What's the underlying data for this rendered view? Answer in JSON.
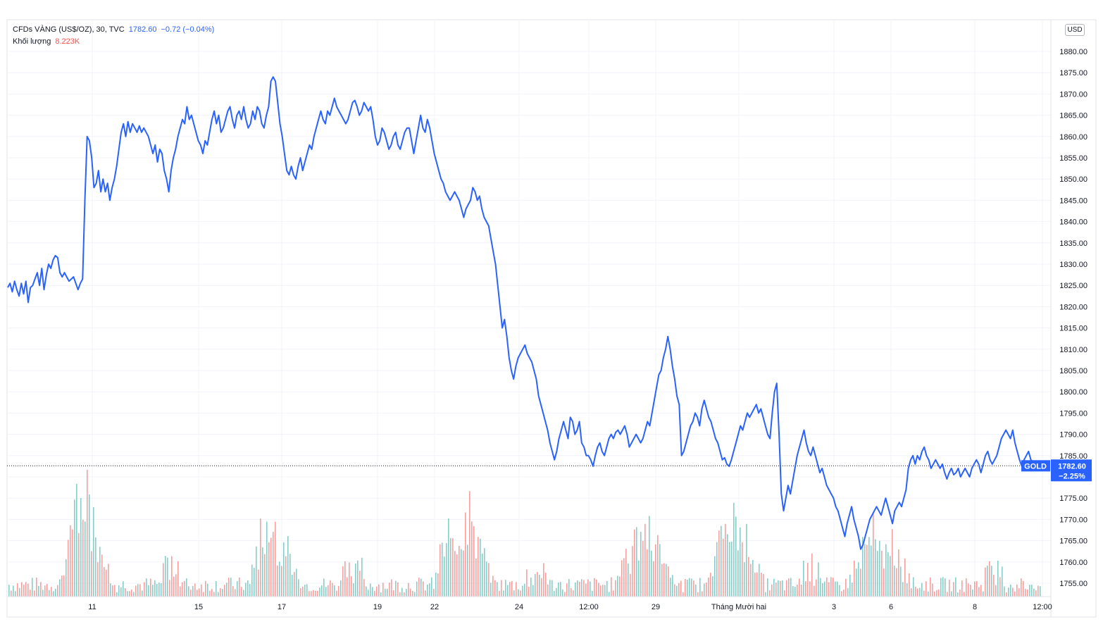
{
  "legend": {
    "symbol": "CFDs VÀNG (US$/OZ), 30, TVC",
    "last_price": "1782.60",
    "change": "−0.72 (−0.04%)",
    "volume_label": "Khối lượng",
    "volume_value": "8.223K"
  },
  "currency_button": "USD",
  "price_tag": {
    "symbol_label": "GOLD",
    "price": "1782.60",
    "change_pct": "−2.25%"
  },
  "colors": {
    "line": "#2962ff",
    "volume_up": "#26a69a",
    "volume_down": "#ef5350",
    "grid": "#f0f3fa",
    "tag_bg": "#2962ff"
  },
  "chart_data": {
    "type": "line",
    "title": "CFDs VÀNG (US$/OZ), 30, TVC",
    "xlabel": "",
    "ylabel": "",
    "ylim": [
      1750,
      1885
    ],
    "y_ticks": [
      1755,
      1760,
      1765,
      1770,
      1775,
      1780,
      1785,
      1790,
      1795,
      1800,
      1805,
      1810,
      1815,
      1820,
      1825,
      1830,
      1835,
      1840,
      1845,
      1850,
      1855,
      1860,
      1865,
      1870,
      1875,
      1880
    ],
    "x_tick_labels": [
      "11",
      "15",
      "17",
      "19",
      "22",
      "24",
      "12:00",
      "29",
      "Tháng Mười hai",
      "3",
      "6",
      "8",
      "12:00"
    ],
    "grid": true,
    "last_value": 1782.6,
    "series": [
      {
        "values": [
          1824.5,
          1825.5,
          1823.5,
          1826,
          1824,
          1822.5,
          1825.5,
          1823,
          1826,
          1821,
          1824.5,
          1825,
          1826.5,
          1828,
          1825,
          1829,
          1824,
          1827.5,
          1830,
          1829,
          1831,
          1832,
          1831.5,
          1828,
          1827,
          1828,
          1827,
          1826,
          1826.5,
          1827,
          1825.5,
          1824,
          1825.5,
          1826.5,
          1845,
          1860,
          1859,
          1855,
          1848,
          1849,
          1852,
          1847,
          1850,
          1847,
          1849,
          1845,
          1848,
          1850,
          1853,
          1857,
          1861,
          1863,
          1860,
          1863.5,
          1861,
          1863,
          1862,
          1861,
          1862.5,
          1861,
          1862,
          1861,
          1860,
          1858,
          1856,
          1858,
          1854,
          1857,
          1856,
          1852,
          1850,
          1847,
          1852,
          1855,
          1857,
          1860,
          1862,
          1864,
          1863,
          1867,
          1864,
          1865,
          1863,
          1861,
          1859,
          1858,
          1856,
          1859,
          1858,
          1861,
          1864,
          1866,
          1863,
          1865,
          1861,
          1862,
          1864,
          1866,
          1867,
          1864,
          1862,
          1865,
          1866,
          1864,
          1867,
          1864,
          1862,
          1863,
          1866,
          1864,
          1867,
          1866,
          1863,
          1862,
          1865,
          1867,
          1873,
          1874,
          1873,
          1868,
          1863,
          1860,
          1856,
          1852,
          1851,
          1853,
          1851,
          1850,
          1853,
          1855,
          1852,
          1854,
          1856,
          1858,
          1857,
          1860,
          1862,
          1864,
          1866,
          1864,
          1863,
          1866,
          1865,
          1867,
          1869,
          1867,
          1866,
          1865,
          1864,
          1863,
          1864,
          1866,
          1868,
          1868.5,
          1867,
          1865,
          1866,
          1868,
          1867,
          1866,
          1867,
          1864,
          1860,
          1858,
          1859,
          1862,
          1861,
          1859,
          1857,
          1858,
          1860,
          1861,
          1858,
          1857,
          1859,
          1861,
          1862,
          1862,
          1859,
          1856,
          1859,
          1862,
          1865,
          1862,
          1861,
          1864,
          1862,
          1859,
          1856,
          1854,
          1852,
          1850,
          1849,
          1847,
          1846,
          1845,
          1846,
          1847,
          1846,
          1845,
          1843,
          1841,
          1843,
          1844,
          1845,
          1848,
          1847,
          1845,
          1846,
          1843,
          1841,
          1840,
          1839,
          1836,
          1833,
          1830,
          1825,
          1820,
          1815,
          1817,
          1813,
          1808,
          1805,
          1803,
          1806,
          1808,
          1809,
          1810,
          1811,
          1809,
          1808,
          1807,
          1805,
          1803,
          1799,
          1797,
          1795,
          1793,
          1791,
          1788,
          1786,
          1784,
          1786,
          1789,
          1791,
          1793,
          1791,
          1789,
          1794,
          1793,
          1790,
          1791,
          1793,
          1788,
          1787,
          1785,
          1785,
          1784,
          1782.5,
          1785,
          1787,
          1788,
          1786,
          1785,
          1787,
          1789,
          1790,
          1789,
          1790.5,
          1791,
          1790,
          1791,
          1792,
          1790,
          1787,
          1788,
          1789,
          1790,
          1789,
          1788,
          1789,
          1791,
          1793,
          1792,
          1795,
          1798,
          1801,
          1804,
          1805,
          1808,
          1810,
          1813,
          1810,
          1806,
          1803,
          1799,
          1797,
          1785,
          1786,
          1788,
          1790,
          1792,
          1793,
          1795,
          1794,
          1792,
          1796,
          1798,
          1796,
          1794,
          1793,
          1791,
          1789,
          1788,
          1786,
          1784,
          1784.5,
          1783,
          1782.5,
          1784,
          1786,
          1788,
          1790,
          1792,
          1791,
          1793,
          1795,
          1794,
          1795,
          1796,
          1797,
          1795,
          1796,
          1794,
          1792,
          1790,
          1789,
          1795,
          1800,
          1802,
          1790,
          1776,
          1772,
          1775,
          1778,
          1776,
          1779,
          1782,
          1785,
          1787,
          1789,
          1791,
          1788,
          1786,
          1785,
          1787,
          1785,
          1783,
          1781,
          1782,
          1780,
          1778,
          1777,
          1776,
          1775,
          1773,
          1772,
          1770,
          1768,
          1766,
          1769,
          1771,
          1773,
          1770,
          1768,
          1766,
          1763,
          1764,
          1766,
          1768,
          1770,
          1771,
          1772,
          1773,
          1772,
          1771,
          1773,
          1775,
          1773,
          1771,
          1769,
          1772,
          1773,
          1774,
          1773,
          1775,
          1777,
          1782,
          1784,
          1785,
          1783,
          1785,
          1784,
          1786,
          1787,
          1785,
          1784,
          1782,
          1783,
          1784,
          1783,
          1782,
          1783,
          1781,
          1779.5,
          1781,
          1782,
          1780.5,
          1781,
          1782,
          1780,
          1781,
          1782,
          1781,
          1780,
          1782,
          1783,
          1784,
          1783,
          1781,
          1783,
          1785,
          1786,
          1784,
          1783,
          1784,
          1785,
          1787,
          1789,
          1790,
          1791,
          1790,
          1789,
          1791,
          1788,
          1786,
          1784,
          1782.5,
          1784,
          1785,
          1786,
          1784,
          1783.5,
          1782.6
        ]
      }
    ],
    "volume_series": {
      "name": "Khối lượng",
      "last_value": "8.223K"
    }
  }
}
